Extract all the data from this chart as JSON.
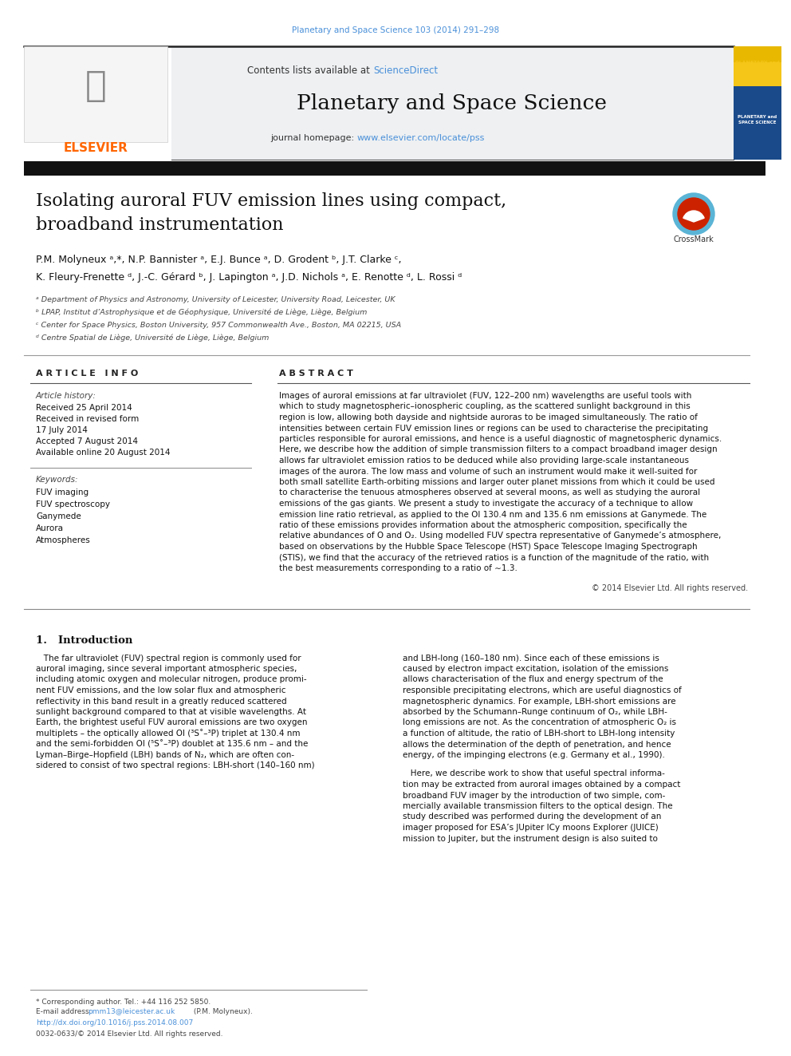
{
  "journal_ref": "Planetary and Space Science 103 (2014) 291–298",
  "journal_name": "Planetary and Space Science",
  "contents_text": "Contents lists available at ",
  "sciencedirect": "ScienceDirect",
  "journal_homepage_label": "journal homepage: ",
  "journal_url": "www.elsevier.com/locate/pss",
  "article_title_line1": "Isolating auroral FUV emission lines using compact,",
  "article_title_line2": "broadband instrumentation",
  "authors_line1": "P.M. Molyneux ᵃ,*, N.P. Bannister ᵃ, E.J. Bunce ᵃ, D. Grodent ᵇ, J.T. Clarke ᶜ,",
  "authors_line2": "K. Fleury-Frenette ᵈ, J.-C. Gérard ᵇ, J. Lapington ᵃ, J.D. Nichols ᵃ, E. Renotte ᵈ, L. Rossi ᵈ",
  "affil_a": "ᵃ Department of Physics and Astronomy, University of Leicester, University Road, Leicester, UK",
  "affil_b": "ᵇ LPAP, Institut d’Astrophysique et de Géophysique, Université de Liège, Liège, Belgium",
  "affil_c": "ᶜ Center for Space Physics, Boston University, 957 Commonwealth Ave., Boston, MA 02215, USA",
  "affil_d": "ᵈ Centre Spatial de Liège, Université de Liège, Liège, Belgium",
  "article_info_label": "A R T I C L E   I N F O",
  "abstract_label": "A B S T R A C T",
  "article_history_label": "Article history:",
  "received1": "Received 25 April 2014",
  "received_revised": "Received in revised form",
  "received_revised2": "17 July 2014",
  "accepted": "Accepted 7 August 2014",
  "available": "Available online 20 August 2014",
  "keywords_label": "Keywords:",
  "keywords": [
    "FUV imaging",
    "FUV spectroscopy",
    "Ganymede",
    "Aurora",
    "Atmospheres"
  ],
  "abstract_lines": [
    "Images of auroral emissions at far ultraviolet (FUV, 122–200 nm) wavelengths are useful tools with",
    "which to study magnetospheric–ionospheric coupling, as the scattered sunlight background in this",
    "region is low, allowing both dayside and nightside auroras to be imaged simultaneously. The ratio of",
    "intensities between certain FUV emission lines or regions can be used to characterise the precipitating",
    "particles responsible for auroral emissions, and hence is a useful diagnostic of magnetospheric dynamics.",
    "Here, we describe how the addition of simple transmission filters to a compact broadband imager design",
    "allows far ultraviolet emission ratios to be deduced while also providing large-scale instantaneous",
    "images of the aurora. The low mass and volume of such an instrument would make it well-suited for",
    "both small satellite Earth-orbiting missions and larger outer planet missions from which it could be used",
    "to characterise the tenuous atmospheres observed at several moons, as well as studying the auroral",
    "emissions of the gas giants. We present a study to investigate the accuracy of a technique to allow",
    "emission line ratio retrieval, as applied to the OI 130.4 nm and 135.6 nm emissions at Ganymede. The",
    "ratio of these emissions provides information about the atmospheric composition, specifically the",
    "relative abundances of O and O₂. Using modelled FUV spectra representative of Ganymede’s atmosphere,",
    "based on observations by the Hubble Space Telescope (HST) Space Telescope Imaging Spectrograph",
    "(STIS), we find that the accuracy of the retrieved ratios is a function of the magnitude of the ratio, with",
    "the best measurements corresponding to a ratio of ∼1.3."
  ],
  "copyright": "© 2014 Elsevier Ltd. All rights reserved.",
  "intro_header": "1.   Introduction",
  "intro_left_lines": [
    "   The far ultraviolet (FUV) spectral region is commonly used for",
    "auroral imaging, since several important atmospheric species,",
    "including atomic oxygen and molecular nitrogen, produce promi-",
    "nent FUV emissions, and the low solar flux and atmospheric",
    "reflectivity in this band result in a greatly reduced scattered",
    "sunlight background compared to that at visible wavelengths. At",
    "Earth, the brightest useful FUV auroral emissions are two oxygen",
    "multiplets – the optically allowed OI (³S˚–³P) triplet at 130.4 nm",
    "and the semi-forbidden OI (⁵S˚–³P) doublet at 135.6 nm – and the",
    "Lyman–Birge–Hopfield (LBH) bands of N₂, which are often con-",
    "sidered to consist of two spectral regions: LBH-short (140–160 nm)"
  ],
  "intro_right_lines": [
    "and LBH-long (160–180 nm). Since each of these emissions is",
    "caused by electron impact excitation, isolation of the emissions",
    "allows characterisation of the flux and energy spectrum of the",
    "responsible precipitating electrons, which are useful diagnostics of",
    "magnetospheric dynamics. For example, LBH-short emissions are",
    "absorbed by the Schumann–Runge continuum of O₂, while LBH-",
    "long emissions are not. As the concentration of atmospheric O₂ is",
    "a function of altitude, the ratio of LBH-short to LBH-long intensity",
    "allows the determination of the depth of penetration, and hence",
    "energy, of the impinging electrons (e.g. Germany et al., 1990)."
  ],
  "intro_right_lines2": [
    "   Here, we describe work to show that useful spectral informa-",
    "tion may be extracted from auroral images obtained by a compact",
    "broadband FUV imager by the introduction of two simple, com-",
    "mercially available transmission filters to the optical design. The",
    "study described was performed during the development of an",
    "imager proposed for ESA’s JUpiter ICy moons Explorer (JUICE)",
    "mission to Jupiter, but the instrument design is also suited to"
  ],
  "footnote_corresponding": "* Corresponding author. Tel.: +44 116 252 5850.",
  "footnote_email_prefix": "E-mail address: ",
  "footnote_email_link": "pmm13@leicester.ac.uk",
  "footnote_email_suffix": " (P.M. Molyneux).",
  "footnote_doi": "http://dx.doi.org/10.1016/j.pss.2014.08.007",
  "footnote_issn": "0032-0633/© 2014 Elsevier Ltd. All rights reserved.",
  "link_color": "#4a90d9",
  "orange_color": "#FF6600",
  "text_color": "#111111",
  "gray_text": "#444444",
  "header_bg": "#eef0f2"
}
